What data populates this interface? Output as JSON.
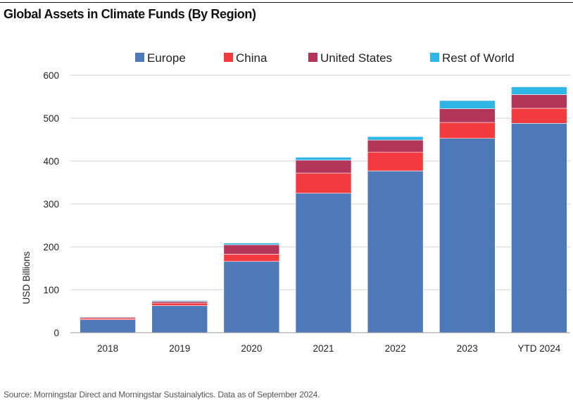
{
  "title": "Global Assets in Climate Funds (By Region)",
  "source": "Source: Morningstar Direct and Morningstar Sustainalytics. Data as of September 2024.",
  "chart_data": {
    "type": "bar",
    "stacked": true,
    "categories": [
      "2018",
      "2019",
      "2020",
      "2021",
      "2022",
      "2023",
      "YTD 2024"
    ],
    "series": [
      {
        "name": "Europe",
        "color": "#4E79B8",
        "values": [
          30,
          63,
          166,
          325,
          377,
          453,
          488
        ]
      },
      {
        "name": "China",
        "color": "#F23A3F",
        "values": [
          3,
          6,
          17,
          47,
          44,
          37,
          35
        ]
      },
      {
        "name": "United States",
        "color": "#B3365A",
        "values": [
          3,
          4,
          22,
          30,
          28,
          32,
          32
        ]
      },
      {
        "name": "Rest of World",
        "color": "#2EB6E6",
        "values": [
          1,
          2,
          4,
          7,
          8,
          19,
          18
        ]
      }
    ],
    "ylabel": "USD Billions",
    "xlabel": "",
    "ylim": [
      0,
      600
    ],
    "yticks": [
      0,
      100,
      200,
      300,
      400,
      500,
      600
    ],
    "grid": true,
    "legend_position": "top"
  }
}
